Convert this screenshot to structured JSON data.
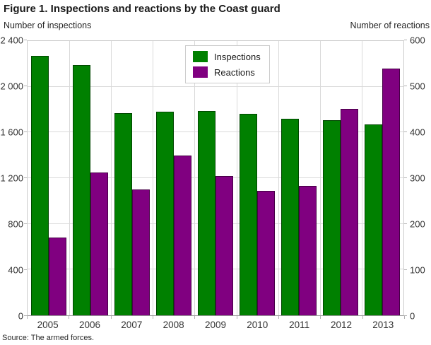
{
  "title": "Figure 1. Inspections and reactions by the Coast guard",
  "source": "Source: The armed forces.",
  "legend": {
    "items": [
      {
        "label": "Inspections",
        "color": "#008000"
      },
      {
        "label": "Reactions",
        "color": "#800080"
      }
    ]
  },
  "colors": {
    "inspections": "#008000",
    "reactions": "#800080",
    "grid": "#d9d9d9",
    "axis_line": "#999999"
  },
  "chart_data": {
    "type": "bar",
    "title": "Figure 1. Inspections and reactions by the Coast guard",
    "categories": [
      "2005",
      "2006",
      "2007",
      "2008",
      "2009",
      "2010",
      "2011",
      "2012",
      "2013"
    ],
    "series": [
      {
        "name": "Inspections",
        "axis": "left",
        "color": "#008000",
        "values": [
          2270,
          2190,
          1770,
          1780,
          1790,
          1760,
          1720,
          1710,
          1670
        ]
      },
      {
        "name": "Reactions",
        "axis": "right",
        "color": "#800080",
        "values": [
          170,
          313,
          275,
          350,
          305,
          272,
          283,
          452,
          540
        ]
      }
    ],
    "left_axis": {
      "title": "Number of inspections",
      "min": 0,
      "max": 2400,
      "ticks": [
        {
          "label": "0",
          "value": 0
        },
        {
          "label": "400",
          "value": 400
        },
        {
          "label": "800",
          "value": 800
        },
        {
          "label": "1 200",
          "value": 1200
        },
        {
          "label": "1 600",
          "value": 1600
        },
        {
          "label": "2 000",
          "value": 2000
        },
        {
          "label": "2 400",
          "value": 2400
        }
      ]
    },
    "right_axis": {
      "title": "Number of reactions",
      "min": 0,
      "max": 600,
      "ticks": [
        {
          "label": "0",
          "value": 0
        },
        {
          "label": "100",
          "value": 100
        },
        {
          "label": "200",
          "value": 200
        },
        {
          "label": "300",
          "value": 300
        },
        {
          "label": "400",
          "value": 400
        },
        {
          "label": "500",
          "value": 500
        },
        {
          "label": "600",
          "value": 600
        }
      ]
    },
    "grid": true,
    "legend_position": "top-center",
    "source": "Source: The armed forces."
  }
}
